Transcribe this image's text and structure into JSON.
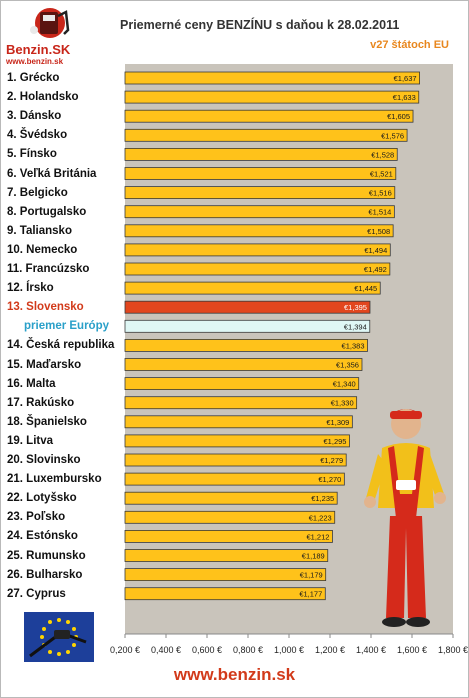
{
  "logo": {
    "name": "Benzin.SK",
    "url": "www.benzin.sk"
  },
  "chart_data": {
    "type": "bar",
    "orientation": "horizontal",
    "title": "Priemerné ceny BENZÍNU s daňou k 28.02.2011",
    "subtitle": "v27 štátoch EU",
    "xlim": [
      0.2,
      1.8
    ],
    "grid": false,
    "x_ticks": [
      "0,200 €",
      "0,400 €",
      "0,600 €",
      "0,800 €",
      "1,000 €",
      "1,200 €",
      "1,400 €",
      "1,600 €",
      "1,800 €"
    ],
    "x_tick_values": [
      0.2,
      0.4,
      0.6,
      0.8,
      1.0,
      1.2,
      1.4,
      1.6,
      1.8
    ],
    "categories": [
      "1. Grécko",
      "2. Holandsko",
      "3. Dánsko",
      "4. Švédsko",
      "5. Fínsko",
      "6. Veľká Británia",
      "7. Belgicko",
      "8. Portugalsko",
      "9. Taliansko",
      "10. Nemecko",
      "11. Francúzsko",
      "12. Írsko",
      "13. Slovensko",
      "priemer Európy",
      "14. Česká republika",
      "15. Maďarsko",
      "16. Malta",
      "17. Rakúsko",
      "18. Španielsko",
      "19. Litva",
      "20. Slovinsko",
      "21. Luxembursko",
      "22. Lotyšsko",
      "23. Poľsko",
      "24. Estónsko",
      "25. Rumunsko",
      "26. Bulharsko",
      "27. Cyprus"
    ],
    "values": [
      1.637,
      1.633,
      1.605,
      1.576,
      1.528,
      1.521,
      1.516,
      1.514,
      1.508,
      1.494,
      1.492,
      1.445,
      1.395,
      1.394,
      1.383,
      1.356,
      1.34,
      1.33,
      1.309,
      1.295,
      1.279,
      1.27,
      1.235,
      1.223,
      1.212,
      1.189,
      1.179,
      1.177
    ],
    "value_labels": [
      "€1,637",
      "€1,633",
      "€1,605",
      "€1,576",
      "€1,528",
      "€1,521",
      "€1,516",
      "€1,514",
      "€1,508",
      "€1,494",
      "€1,492",
      "€1,445",
      "€1,395",
      "€1,394",
      "€1,383",
      "€1,356",
      "€1,340",
      "€1,330",
      "€1,309",
      "€1,295",
      "€1,279",
      "€1,270",
      "€1,235",
      "€1,223",
      "€1,212",
      "€1,189",
      "€1,179",
      "€1,177"
    ],
    "highlight_index": 12,
    "average_index": 13,
    "colors": {
      "bar": "#ffc21a",
      "bar_border": "#3a3a3a",
      "highlight": "#e2461e",
      "average": "#dff7f5",
      "plot_background": "#c9c4bb",
      "label_highlight": "#d23a1a",
      "label_average": "#2aa0c9"
    }
  },
  "footer": {
    "url": "www.benzin.sk"
  }
}
